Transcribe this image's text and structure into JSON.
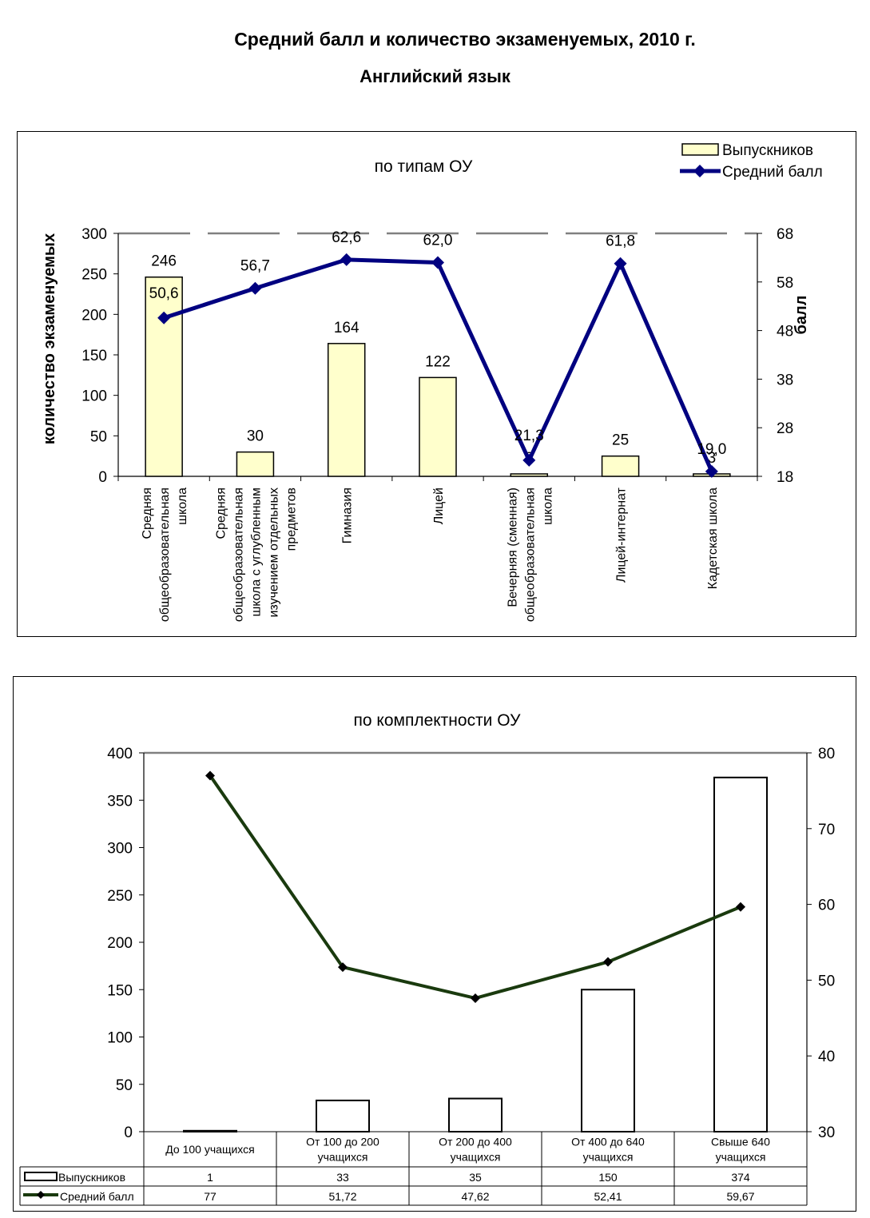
{
  "page": {
    "title": "Средний балл и количество экзаменуемых, 2010 г.",
    "subtitle": "Английский язык"
  },
  "chart_data": [
    {
      "type": "bar",
      "title": "по типам ОУ",
      "ylabel": "количество экзаменуемых",
      "y2label": "балл",
      "ylim": [
        0,
        300
      ],
      "y2lim": [
        18,
        68
      ],
      "yticks": [
        "0",
        "50",
        "100",
        "150",
        "200",
        "250",
        "300"
      ],
      "y2ticks": [
        "18",
        "28",
        "38",
        "48",
        "58",
        "68"
      ],
      "legend_position": "top-right",
      "categories": [
        "Средняя общеобразовательная школа",
        "Средняя общеобразовательная школа с углубленным изучением отдельных предметов",
        "Гимназия",
        "Лицей",
        "Вечерняя (сменная) общеобразовательная школа",
        "Лицей-интернат",
        "Кадетская школа"
      ],
      "series": [
        {
          "name": "Выпускников",
          "type": "bar",
          "axis": "left",
          "values": [
            246,
            30,
            164,
            122,
            3,
            25,
            3
          ],
          "labels": [
            "246",
            "30",
            "164",
            "122",
            "3",
            "25",
            "3"
          ],
          "color": "#ffffcc"
        },
        {
          "name": "Средний балл",
          "type": "line",
          "axis": "right",
          "values": [
            50.6,
            56.7,
            62.6,
            62.0,
            21.3,
            61.8,
            19.0
          ],
          "labels": [
            "50,6",
            "56,7",
            "62,6",
            "62,0",
            "21,3",
            "61,8",
            "19,0"
          ],
          "color": "#000080"
        }
      ]
    },
    {
      "type": "bar",
      "title": "по комплектности ОУ",
      "ylim": [
        0,
        400
      ],
      "y2lim": [
        30,
        80
      ],
      "yticks": [
        "0",
        "50",
        "100",
        "150",
        "200",
        "250",
        "300",
        "350",
        "400"
      ],
      "y2ticks": [
        "30",
        "40",
        "50",
        "60",
        "70",
        "80"
      ],
      "categories": [
        "До 100 учащихся",
        "От 100 до 200 учащихся",
        "От 200 до 400 учащихся",
        "От 400 до 640 учащихся",
        "Свыше 640 учащихся"
      ],
      "series": [
        {
          "name": "Выпускников",
          "type": "bar",
          "axis": "left",
          "values": [
            1,
            33,
            35,
            150,
            374
          ],
          "labels": [
            "1",
            "33",
            "35",
            "150",
            "374"
          ],
          "color": "#ffffff"
        },
        {
          "name": "Средний балл",
          "type": "line",
          "axis": "right",
          "values": [
            77,
            51.72,
            47.62,
            52.41,
            59.67
          ],
          "labels": [
            "77",
            "51,72",
            "47,62",
            "52,41",
            "59,67"
          ],
          "color": "#1a3a0e"
        }
      ]
    }
  ]
}
